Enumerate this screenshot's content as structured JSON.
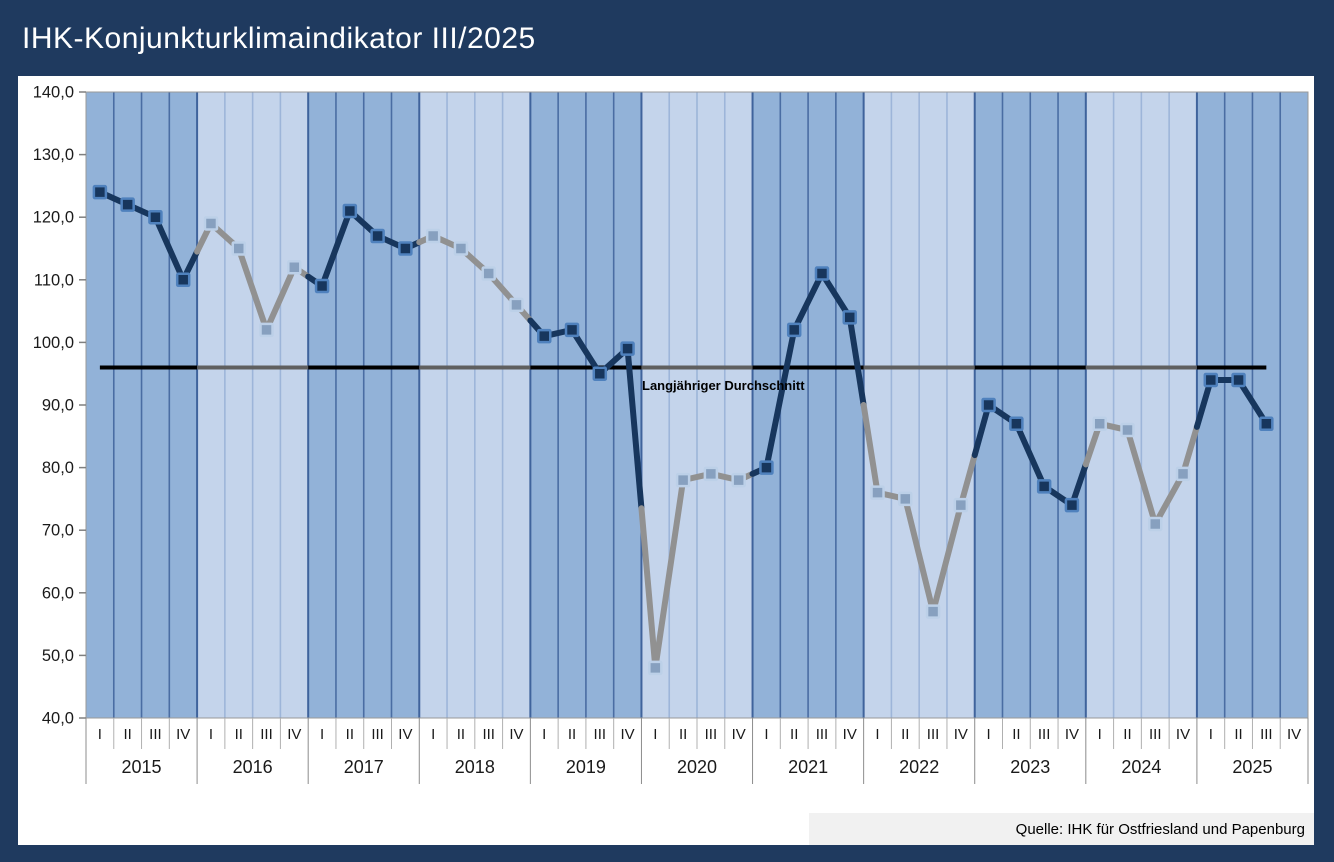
{
  "title": "IHK-Konjunkturklimaindikator III/2025",
  "source_label": "Quelle: IHK für Ostfriesland und Papenburg",
  "chart_data": {
    "type": "line",
    "title": "IHK-Konjunkturklimaindikator III/2025",
    "xlabel": "",
    "ylabel": "",
    "ylim": [
      40,
      140
    ],
    "ytick_step": 10,
    "ytick_labels": [
      "140,0",
      "130,0",
      "120,0",
      "110,0",
      "100,0",
      "90,0",
      "80,0",
      "70,0",
      "60,0",
      "50,0",
      "40,0"
    ],
    "years": [
      "2015",
      "2016",
      "2017",
      "2018",
      "2019",
      "2020",
      "2021",
      "2022",
      "2023",
      "2024",
      "2025"
    ],
    "quarter_labels": [
      "I",
      "II",
      "III",
      "IV"
    ],
    "year_colors": [
      "navy",
      "gray",
      "navy",
      "gray",
      "navy",
      "gray",
      "navy",
      "gray",
      "navy",
      "gray",
      "navy"
    ],
    "series": [
      {
        "name": "IHK-Konjunkturklimaindikator",
        "values": [
          124,
          122,
          120,
          110,
          119,
          115,
          102,
          112,
          109,
          121,
          117,
          115,
          117,
          115,
          111,
          106,
          101,
          102,
          95,
          99,
          48,
          78,
          79,
          78,
          80,
          102,
          111,
          104,
          76,
          75,
          57,
          74,
          90,
          87,
          77,
          74,
          87,
          86,
          71,
          79,
          94,
          94,
          87,
          null
        ]
      }
    ],
    "average_line": {
      "label": "Langjähriger Durchschnitt",
      "value": 96
    },
    "legend": "none",
    "grid": "vertical-quarter-bands",
    "palette": {
      "page_background": "#1f3a5f",
      "panel_background": "#ffffff",
      "band_navy_year": "#92b2d8",
      "band_gray_year": "#c4d4eb",
      "separator_navy_year": "#4a6da3",
      "separator_gray_year": "#9db5d9",
      "separator_year_boundary": "#3f639c",
      "plot_border": "#999999",
      "line_navy": "#17365d",
      "line_gray": "#919191",
      "marker_navy_fill": "#17365d",
      "marker_navy_stroke": "#4f81bd",
      "marker_gray_fill": "#87a0bf",
      "marker_gray_stroke": "#bcd0e8",
      "avg_line_navy_segment": "#000000",
      "avg_line_gray_segment": "#5f5f5f",
      "axis_text": "#1a1a1a",
      "tick_quarter": "#b0b0b0",
      "tick_year": "#8c8c8c",
      "source_box_background": "#f1f1f1"
    }
  }
}
